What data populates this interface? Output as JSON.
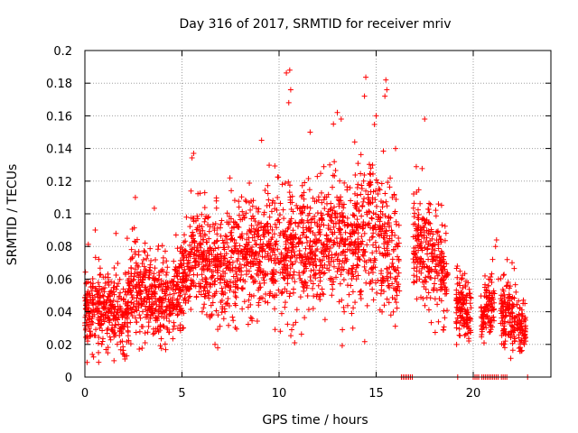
{
  "chart_data": {
    "type": "scatter",
    "title": "Day 316 of 2017, SRMTID for receiver mriv",
    "xlabel": "GPS time / hours",
    "ylabel": "SRMTID / TECUs",
    "xlim": [
      0,
      24
    ],
    "ylim": [
      0,
      0.2
    ],
    "xticks": [
      0,
      5,
      10,
      15,
      20
    ],
    "yticks": [
      0,
      0.02,
      0.04,
      0.06,
      0.08,
      0.1,
      0.12,
      0.14,
      0.16,
      0.18,
      0.2
    ],
    "xtick_labels": [
      "0",
      "5",
      "10",
      "15",
      "20"
    ],
    "ytick_labels": [
      "0",
      "0.02",
      "0.04",
      "0.06",
      "0.08",
      "0.1",
      "0.12",
      "0.14",
      "0.16",
      "0.18",
      "0.2"
    ],
    "grid": true,
    "marker": "+",
    "series_color": "#ff0000",
    "profile": [
      [
        0.0,
        0.04,
        0.012
      ],
      [
        0.5,
        0.04,
        0.012
      ],
      [
        1.0,
        0.04,
        0.012
      ],
      [
        1.5,
        0.042,
        0.013
      ],
      [
        2.0,
        0.035,
        0.012
      ],
      [
        2.5,
        0.058,
        0.015
      ],
      [
        3.0,
        0.05,
        0.013
      ],
      [
        3.5,
        0.05,
        0.014
      ],
      [
        4.0,
        0.045,
        0.013
      ],
      [
        4.5,
        0.048,
        0.013
      ],
      [
        5.0,
        0.055,
        0.014
      ],
      [
        5.5,
        0.075,
        0.016
      ],
      [
        6.0,
        0.072,
        0.016
      ],
      [
        6.5,
        0.068,
        0.016
      ],
      [
        7.0,
        0.065,
        0.016
      ],
      [
        7.5,
        0.072,
        0.016
      ],
      [
        8.0,
        0.075,
        0.016
      ],
      [
        8.5,
        0.072,
        0.017
      ],
      [
        9.0,
        0.07,
        0.017
      ],
      [
        9.5,
        0.08,
        0.018
      ],
      [
        10.0,
        0.072,
        0.02
      ],
      [
        10.5,
        0.08,
        0.02
      ],
      [
        11.0,
        0.075,
        0.018
      ],
      [
        11.5,
        0.075,
        0.018
      ],
      [
        12.0,
        0.08,
        0.019
      ],
      [
        12.5,
        0.085,
        0.02
      ],
      [
        13.0,
        0.085,
        0.02
      ],
      [
        13.5,
        0.078,
        0.021
      ],
      [
        14.0,
        0.085,
        0.021
      ],
      [
        14.5,
        0.09,
        0.022
      ],
      [
        15.0,
        0.085,
        0.021
      ],
      [
        15.5,
        0.08,
        0.021
      ],
      [
        16.0,
        0.07,
        0.02
      ],
      [
        16.5,
        0.065,
        0.018
      ],
      [
        17.0,
        0.08,
        0.015
      ],
      [
        17.5,
        0.078,
        0.016
      ],
      [
        18.0,
        0.072,
        0.016
      ],
      [
        18.5,
        0.06,
        0.014
      ],
      [
        19.0,
        0.048,
        0.012
      ],
      [
        19.5,
        0.042,
        0.01
      ],
      [
        20.0,
        0.038,
        0.008
      ],
      [
        20.5,
        0.04,
        0.009
      ],
      [
        21.0,
        0.045,
        0.01
      ],
      [
        21.5,
        0.04,
        0.01
      ],
      [
        22.0,
        0.035,
        0.009
      ],
      [
        22.5,
        0.03,
        0.008
      ],
      [
        22.8,
        0.028,
        0.008
      ]
    ],
    "dense_intervals": [
      [
        0.0,
        16.2
      ],
      [
        16.9,
        18.7
      ],
      [
        19.1,
        19.9
      ],
      [
        20.4,
        21.1
      ],
      [
        21.4,
        22.7
      ]
    ],
    "gaps_bottom": [
      [
        16.3,
        16.9
      ],
      [
        19.2,
        19.25
      ],
      [
        20.0,
        20.35
      ],
      [
        20.45,
        21.3
      ],
      [
        21.45,
        21.75
      ],
      [
        22.8,
        22.85
      ]
    ],
    "extreme_points": [
      {
        "x": 10.55,
        "y": 0.188
      },
      {
        "x": 10.6,
        "y": 0.176
      },
      {
        "x": 10.5,
        "y": 0.168
      },
      {
        "x": 15.5,
        "y": 0.182
      },
      {
        "x": 15.55,
        "y": 0.176
      },
      {
        "x": 15.45,
        "y": 0.172
      },
      {
        "x": 14.4,
        "y": 0.172
      },
      {
        "x": 13.0,
        "y": 0.162
      },
      {
        "x": 13.2,
        "y": 0.158
      },
      {
        "x": 12.8,
        "y": 0.155
      },
      {
        "x": 9.1,
        "y": 0.145
      },
      {
        "x": 17.5,
        "y": 0.158
      },
      {
        "x": 5.6,
        "y": 0.137
      },
      {
        "x": 11.6,
        "y": 0.15
      },
      {
        "x": 15.0,
        "y": 0.16
      },
      {
        "x": 16.0,
        "y": 0.14
      },
      {
        "x": 2.6,
        "y": 0.11
      },
      {
        "x": 1.6,
        "y": 0.088
      },
      {
        "x": 21.2,
        "y": 0.084
      },
      {
        "x": 22.5,
        "y": 0.038
      },
      {
        "x": 1.5,
        "y": 0.01
      },
      {
        "x": 0.7,
        "y": 0.015
      },
      {
        "x": 6.7,
        "y": 0.02
      },
      {
        "x": 13.8,
        "y": 0.03
      }
    ],
    "tail_points": [
      {
        "x": 20.6,
        "y": 0.055
      },
      {
        "x": 20.8,
        "y": 0.06
      },
      {
        "x": 21.0,
        "y": 0.072
      },
      {
        "x": 21.15,
        "y": 0.08
      },
      {
        "x": 21.3,
        "y": 0.06
      },
      {
        "x": 21.5,
        "y": 0.045
      },
      {
        "x": 21.8,
        "y": 0.058
      },
      {
        "x": 22.0,
        "y": 0.07
      },
      {
        "x": 22.2,
        "y": 0.052
      },
      {
        "x": 22.4,
        "y": 0.042
      },
      {
        "x": 22.6,
        "y": 0.025
      },
      {
        "x": 22.7,
        "y": 0.022
      }
    ]
  }
}
